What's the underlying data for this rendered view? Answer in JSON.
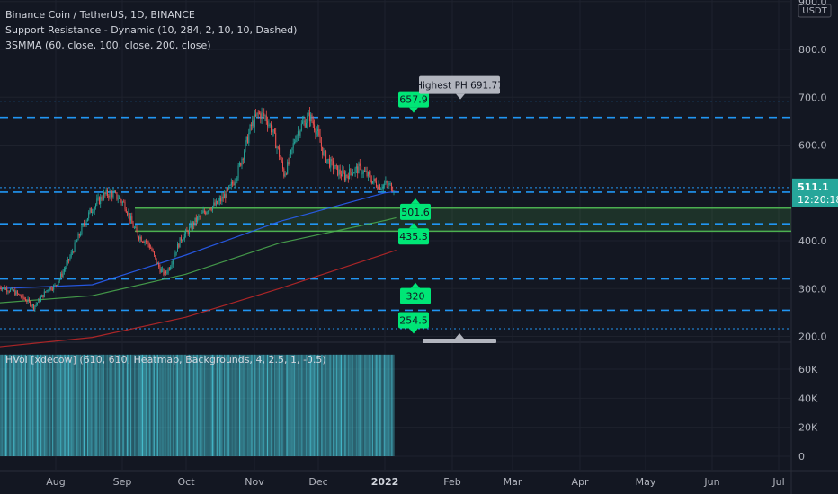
{
  "legend": {
    "symbol": "Binance Coin / TetherUS, 1D, BINANCE",
    "indicator1": "Support Resistance - Dynamic (10, 284, 2, 10, 10, Dashed)",
    "indicator2": "3SMMA (60, close, 100, close, 200, close)"
  },
  "hvol_label": "HVol [xdecow] (610, 610, Heatmap, Backgrounds, 4, 2.5, 1, -0.5)",
  "price_axis": {
    "currency": "USDT",
    "ticks": [
      "900.0",
      "800.0",
      "700.0",
      "600.0",
      "400.0",
      "300.0",
      "200.0"
    ],
    "current_price": "511.1",
    "countdown": "12:20:18"
  },
  "volume_axis": {
    "ticks": [
      "60K",
      "40K",
      "20K",
      "0"
    ]
  },
  "time_axis": {
    "labels": [
      "Aug",
      "Sep",
      "Oct",
      "Nov",
      "Dec",
      "2022",
      "Feb",
      "Mar",
      "Apr",
      "May",
      "Jun",
      "Jul"
    ]
  },
  "callouts": {
    "highest_ph": "Highest PH 691.77"
  },
  "levels": [
    "657.9",
    "501.6",
    "435.3",
    "320",
    "254.5"
  ],
  "colors": {
    "background": "#131722",
    "up": "#26a69a",
    "down": "#ef5350",
    "level_line": "#2196f3",
    "level_badge": "#00e676",
    "zone": "#4caf50",
    "volume": "#4dd0e1"
  },
  "chart_data": {
    "type": "candlestick",
    "title": "Binance Coin / TetherUS, 1D, BINANCE",
    "yunit": "USDT",
    "ylim": [
      200,
      900
    ],
    "ytick_values": [
      900,
      800,
      700,
      600,
      400,
      300,
      200
    ],
    "x_labels": [
      "Aug",
      "Sep",
      "Oct",
      "Nov",
      "Dec",
      "2022",
      "Feb",
      "Mar",
      "Apr",
      "May",
      "Jun",
      "Jul"
    ],
    "price_path": [
      [
        0,
        305
      ],
      [
        6,
        300
      ],
      [
        12,
        295
      ],
      [
        18,
        285
      ],
      [
        24,
        275
      ],
      [
        30,
        262
      ],
      [
        36,
        280
      ],
      [
        42,
        300
      ],
      [
        48,
        305
      ],
      [
        54,
        330
      ],
      [
        60,
        360
      ],
      [
        66,
        395
      ],
      [
        72,
        430
      ],
      [
        78,
        460
      ],
      [
        84,
        480
      ],
      [
        90,
        495
      ],
      [
        96,
        500
      ],
      [
        102,
        490
      ],
      [
        108,
        475
      ],
      [
        114,
        435
      ],
      [
        118,
        415
      ],
      [
        122,
        405
      ],
      [
        126,
        400
      ],
      [
        130,
        385
      ],
      [
        134,
        360
      ],
      [
        138,
        340
      ],
      [
        142,
        330
      ],
      [
        146,
        345
      ],
      [
        150,
        370
      ],
      [
        156,
        405
      ],
      [
        162,
        420
      ],
      [
        168,
        440
      ],
      [
        174,
        455
      ],
      [
        180,
        470
      ],
      [
        186,
        475
      ],
      [
        192,
        490
      ],
      [
        198,
        510
      ],
      [
        204,
        540
      ],
      [
        210,
        590
      ],
      [
        216,
        640
      ],
      [
        222,
        665
      ],
      [
        228,
        660
      ],
      [
        234,
        630
      ],
      [
        240,
        580
      ],
      [
        244,
        540
      ],
      [
        248,
        560
      ],
      [
        254,
        620
      ],
      [
        260,
        645
      ],
      [
        266,
        660
      ],
      [
        272,
        630
      ],
      [
        278,
        580
      ],
      [
        284,
        560
      ],
      [
        290,
        545
      ],
      [
        296,
        535
      ],
      [
        302,
        545
      ],
      [
        308,
        550
      ],
      [
        314,
        540
      ],
      [
        320,
        525
      ],
      [
        326,
        515
      ],
      [
        332,
        518
      ],
      [
        338,
        511
      ]
    ],
    "current_price": 511.1,
    "highest_pivot_high": 691.77,
    "levels": [
      657.9,
      501.6,
      435.3,
      320,
      254.5
    ],
    "zone": [
      420,
      468
    ],
    "smma": [
      {
        "length": 60,
        "color": "#2962ff",
        "values": [
          [
            0,
            300
          ],
          [
            80,
            308
          ],
          [
            160,
            370
          ],
          [
            240,
            440
          ],
          [
            330,
            500
          ],
          [
            340,
            503
          ]
        ]
      },
      {
        "length": 100,
        "color": "#4caf50",
        "values": [
          [
            0,
            270
          ],
          [
            80,
            285
          ],
          [
            160,
            330
          ],
          [
            240,
            395
          ],
          [
            330,
            442
          ],
          [
            340,
            448
          ]
        ]
      },
      {
        "length": 200,
        "color": "#c62828",
        "values": [
          [
            0,
            178
          ],
          [
            80,
            198
          ],
          [
            160,
            240
          ],
          [
            240,
            300
          ],
          [
            330,
            372
          ],
          [
            340,
            380
          ]
        ]
      }
    ],
    "volume_axis": {
      "ylim": [
        0,
        70000
      ],
      "ticks": [
        60000,
        40000,
        20000,
        0
      ]
    }
  }
}
